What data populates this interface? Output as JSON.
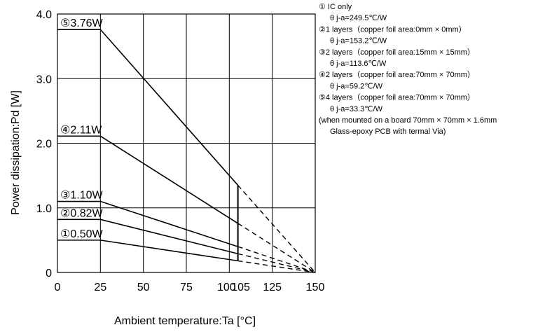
{
  "chart_data": {
    "type": "line",
    "xlabel": "Ambient temperature:Ta [°C]",
    "ylabel": "Power dissipation:Pd [W]",
    "xlim": [
      0,
      150
    ],
    "ylim": [
      0,
      4.0
    ],
    "grid": true,
    "x_ticks": [
      {
        "value": 0,
        "label": "0"
      },
      {
        "value": 25,
        "label": "25"
      },
      {
        "value": 50,
        "label": "50"
      },
      {
        "value": 75,
        "label": "75"
      },
      {
        "value": 100,
        "label": "100"
      },
      {
        "value": 105,
        "label": "105"
      },
      {
        "value": 125,
        "label": "125"
      },
      {
        "value": 150,
        "label": "150"
      }
    ],
    "x_gridlines": [
      0,
      25,
      50,
      75,
      100,
      125,
      150
    ],
    "y_ticks": [
      {
        "value": 0,
        "label": "0"
      },
      {
        "value": 1.0,
        "label": "1.0"
      },
      {
        "value": 2.0,
        "label": "2.0"
      },
      {
        "value": 3.0,
        "label": "3.0"
      },
      {
        "value": 4.0,
        "label": "4.0"
      }
    ],
    "series": [
      {
        "label": "①0.50W",
        "values": [
          [
            0,
            0.5
          ],
          [
            25,
            0.5
          ],
          [
            105,
            0.18
          ]
        ],
        "extrapolated": [
          [
            105,
            0.18
          ],
          [
            150,
            0
          ]
        ]
      },
      {
        "label": "②0.82W",
        "values": [
          [
            0,
            0.82
          ],
          [
            25,
            0.82
          ],
          [
            105,
            0.29
          ]
        ],
        "extrapolated": [
          [
            105,
            0.29
          ],
          [
            150,
            0
          ]
        ]
      },
      {
        "label": "③1.10W",
        "values": [
          [
            0,
            1.1
          ],
          [
            25,
            1.1
          ],
          [
            105,
            0.4
          ]
        ],
        "extrapolated": [
          [
            105,
            0.4
          ],
          [
            150,
            0
          ]
        ]
      },
      {
        "label": "④2.11W",
        "values": [
          [
            0,
            2.11
          ],
          [
            25,
            2.11
          ],
          [
            105,
            0.76
          ]
        ],
        "extrapolated": [
          [
            105,
            0.76
          ],
          [
            150,
            0
          ]
        ]
      },
      {
        "label": "⑤3.76W",
        "values": [
          [
            0,
            3.76
          ],
          [
            25,
            3.76
          ],
          [
            105,
            1.35
          ]
        ],
        "extrapolated": [
          [
            105,
            1.35
          ],
          [
            150,
            0
          ]
        ]
      }
    ],
    "marker_lines": [
      {
        "x": 105,
        "from": 0.18,
        "to": 1.35
      }
    ],
    "notes": [
      {
        "text": "① IC only",
        "indent": false
      },
      {
        "text": "θ j-a=249.5℃/W",
        "indent": true
      },
      {
        "text": "②1 layers（copper foil area:0mm × 0mm）",
        "indent": false
      },
      {
        "text": "θ j-a=153.2℃/W",
        "indent": true
      },
      {
        "text": "③2 layers（copper foil area:15mm × 15mm）",
        "indent": false
      },
      {
        "text": "θ j-a=113.6℃/W",
        "indent": true
      },
      {
        "text": "④2 layers（copper foil area:70mm × 70mm）",
        "indent": false
      },
      {
        "text": "θ j-a=59.2℃/W",
        "indent": true
      },
      {
        "text": "⑤4 layers（copper foil area:70mm × 70mm）",
        "indent": false
      },
      {
        "text": "θ j-a=33.3℃/W",
        "indent": true
      },
      {
        "text": "(when mounted on a board 70mm × 70mm × 1.6mm",
        "indent": false
      },
      {
        "text": "Glass-epoxy PCB with termal Via)",
        "indent": true
      }
    ]
  }
}
